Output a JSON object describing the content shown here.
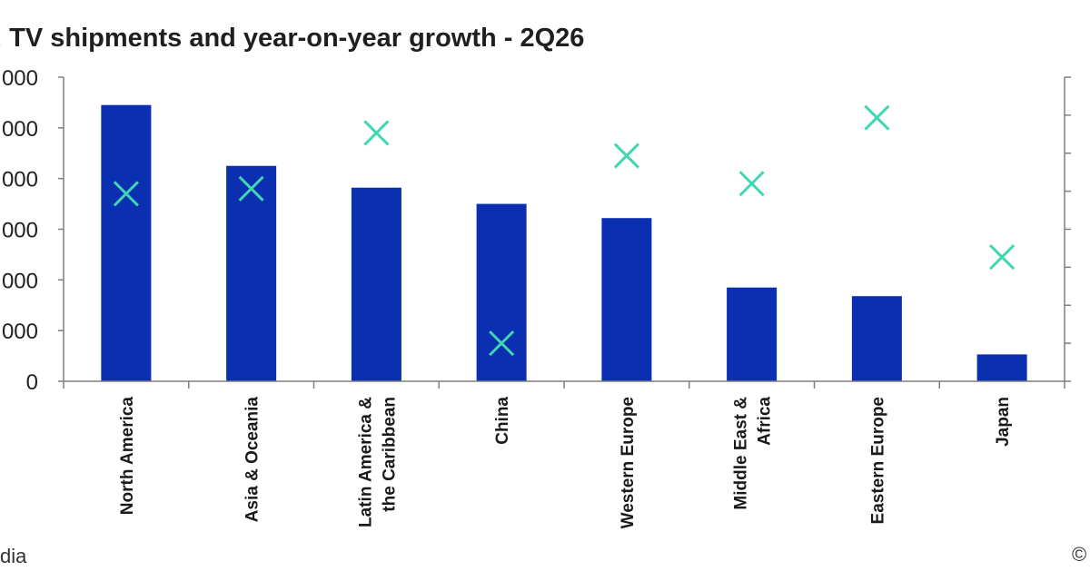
{
  "title": ". TV shipments and year-on-year growth - 2Q26",
  "footer_left": "dia",
  "footer_right": "©",
  "colors": {
    "bar": "#0a2fb0",
    "marker": "#3fd6b2",
    "axis": "#7f7f7f"
  },
  "chart_data": {
    "type": "bar",
    "title": ". TV shipments and year-on-year growth - 2Q26",
    "categories": [
      "North America",
      "Asia & Oceania",
      "Latin America & the Caribbean",
      "China",
      "Western Europe",
      "Middle East & Africa",
      "Eastern Europe",
      "Japan"
    ],
    "category_lines": [
      [
        "North America"
      ],
      [
        "Asia & Oceania"
      ],
      [
        "Latin America &",
        "the Caribbean"
      ],
      [
        "China"
      ],
      [
        "Western Europe"
      ],
      [
        "Middle East &",
        "Africa"
      ],
      [
        "Eastern Europe"
      ],
      [
        "Japan"
      ]
    ],
    "ytick_labels": [
      "0",
      "000",
      "000",
      "000",
      "000",
      "000",
      "000"
    ],
    "ylim": [
      0,
      6
    ],
    "series": [
      {
        "type": "bar",
        "values": [
          5.45,
          4.25,
          3.82,
          3.5,
          3.22,
          1.85,
          1.68,
          0.53
        ]
      },
      {
        "type": "scatter-x",
        "values": [
          3.7,
          3.8,
          4.9,
          0.75,
          4.45,
          3.9,
          5.2,
          2.45
        ]
      }
    ],
    "secondary_axis": {
      "ticks": 9,
      "labels": []
    },
    "grid": false
  }
}
